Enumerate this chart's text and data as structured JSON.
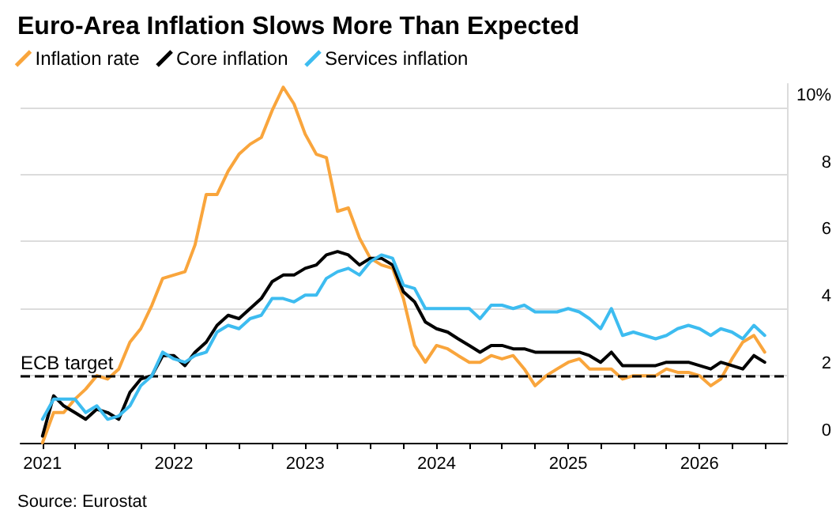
{
  "chart_data": {
    "type": "line",
    "title": "Euro-Area Inflation Slows More Than Expected",
    "annotations": [
      "Source: Eurostat"
    ],
    "x": [
      "2021-01",
      "2021-02",
      "2021-03",
      "2021-04",
      "2021-05",
      "2021-06",
      "2021-07",
      "2021-08",
      "2021-09",
      "2021-10",
      "2021-11",
      "2021-12",
      "2022-01",
      "2022-02",
      "2022-03",
      "2022-04",
      "2022-05",
      "2022-06",
      "2022-07",
      "2022-08",
      "2022-09",
      "2022-10",
      "2022-11",
      "2022-12",
      "2023-01",
      "2023-02",
      "2023-03",
      "2023-04",
      "2023-05",
      "2023-06",
      "2023-07",
      "2023-08",
      "2023-09",
      "2023-10",
      "2023-11",
      "2023-12",
      "2024-01",
      "2024-02",
      "2024-03",
      "2024-04",
      "2024-05",
      "2024-06",
      "2024-07",
      "2024-08",
      "2024-09",
      "2024-10",
      "2024-11",
      "2024-12",
      "2025-01",
      "2025-02",
      "2025-03",
      "2025-04",
      "2025-05",
      "2025-06",
      "2025-07",
      "2025-08",
      "2025-09",
      "2025-10",
      "2025-11",
      "2025-12",
      "2026-01",
      "2026-02",
      "2026-03",
      "2026-04",
      "2026-05",
      "2026-06",
      "2026-07"
    ],
    "series": [
      {
        "name": "Inflation rate",
        "color": "#f9a53c",
        "values": [
          0.0,
          0.9,
          0.9,
          1.3,
          1.6,
          2.0,
          1.9,
          2.2,
          3.0,
          3.4,
          4.1,
          4.9,
          5.0,
          5.1,
          5.9,
          7.4,
          7.4,
          8.1,
          8.6,
          8.9,
          9.1,
          9.9,
          10.6,
          10.1,
          9.2,
          8.6,
          8.5,
          6.9,
          7.0,
          6.1,
          5.5,
          5.3,
          5.2,
          4.3,
          2.9,
          2.4,
          2.9,
          2.8,
          2.6,
          2.4,
          2.4,
          2.6,
          2.5,
          2.6,
          2.2,
          1.7,
          2.0,
          2.2,
          2.4,
          2.5,
          2.2,
          2.2,
          2.2,
          1.9,
          2.0,
          2.0,
          2.0,
          2.2,
          2.1,
          2.1,
          2.0,
          1.7,
          1.9,
          2.5,
          3.0,
          3.2,
          2.7
        ]
      },
      {
        "name": "Core inflation",
        "color": "#000000",
        "values": [
          0.2,
          1.4,
          1.1,
          0.9,
          0.7,
          1.0,
          0.9,
          0.7,
          1.5,
          1.9,
          2.0,
          2.6,
          2.6,
          2.3,
          2.7,
          3.0,
          3.5,
          3.8,
          3.7,
          4.0,
          4.3,
          4.8,
          5.0,
          5.0,
          5.2,
          5.3,
          5.6,
          5.7,
          5.6,
          5.3,
          5.5,
          5.5,
          5.3,
          4.5,
          4.2,
          3.6,
          3.4,
          3.3,
          3.1,
          2.9,
          2.7,
          2.9,
          2.9,
          2.8,
          2.8,
          2.7,
          2.7,
          2.7,
          2.7,
          2.7,
          2.6,
          2.4,
          2.7,
          2.3,
          2.3,
          2.3,
          2.3,
          2.4,
          2.4,
          2.4,
          2.3,
          2.2,
          2.4,
          2.3,
          2.2,
          2.6,
          2.4
        ]
      },
      {
        "name": "Services inflation",
        "color": "#3dbcf0",
        "values": [
          0.7,
          1.3,
          1.3,
          1.3,
          0.9,
          1.1,
          0.7,
          0.8,
          1.1,
          1.7,
          2.0,
          2.7,
          2.5,
          2.4,
          2.6,
          2.7,
          3.3,
          3.5,
          3.4,
          3.7,
          3.8,
          4.3,
          4.3,
          4.2,
          4.4,
          4.4,
          4.9,
          5.1,
          5.2,
          5.0,
          5.4,
          5.6,
          5.5,
          4.7,
          4.6,
          4.0,
          4.0,
          4.0,
          4.0,
          4.0,
          3.7,
          4.1,
          4.1,
          4.0,
          4.1,
          3.9,
          3.9,
          3.9,
          4.0,
          3.9,
          3.7,
          3.4,
          4.0,
          3.2,
          3.3,
          3.2,
          3.1,
          3.2,
          3.4,
          3.5,
          3.4,
          3.2,
          3.4,
          3.3,
          3.1,
          3.5,
          3.2
        ]
      }
    ],
    "xlim": [
      "2020-11",
      "2026-09"
    ],
    "xticks": [
      "2021",
      {
        "value": "2021-04",
        "label": null
      },
      {
        "value": "2021-07",
        "label": null
      },
      {
        "value": "2021-10",
        "label": null
      },
      "2022",
      {
        "value": "2022-04",
        "label": null
      },
      {
        "value": "2022-07",
        "label": null
      },
      {
        "value": "2022-10",
        "label": null
      },
      "2023",
      {
        "value": "2023-04",
        "label": null
      },
      {
        "value": "2023-07",
        "label": null
      },
      {
        "value": "2023-10",
        "label": null
      },
      "2024",
      {
        "value": "2024-04",
        "label": null
      },
      {
        "value": "2024-07",
        "label": null
      },
      {
        "value": "2024-10",
        "label": null
      },
      "2025",
      {
        "value": "2025-04",
        "label": null
      },
      {
        "value": "2025-07",
        "label": null
      },
      {
        "value": "2025-10",
        "label": null
      },
      "2026",
      {
        "value": "2026-04",
        "label": null
      },
      {
        "value": "2026-07",
        "label": null
      }
    ],
    "ylim": [
      0,
      10.7
    ],
    "yticks": [
      0,
      2,
      4,
      6,
      8,
      {
        "value": 10,
        "label": "10%"
      }
    ],
    "ref_lines": [
      {
        "axis": "y",
        "value": 2,
        "label": "ECB target",
        "color": "#000000",
        "line_style": "dashed"
      }
    ],
    "grid": "y",
    "legend": "top left",
    "marker": "none",
    "line_style": "solid"
  }
}
